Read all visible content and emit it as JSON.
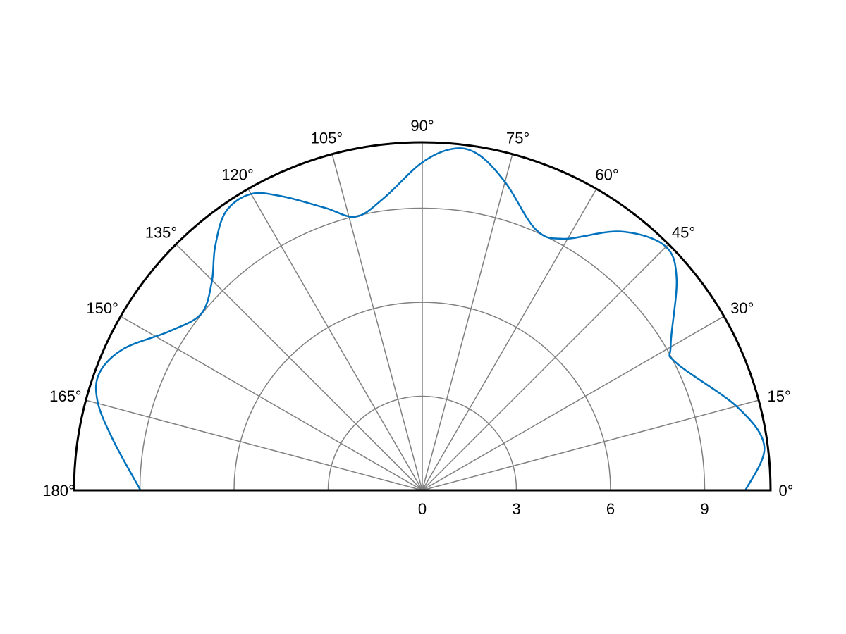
{
  "chart_data": {
    "type": "line",
    "coordinate_system": "polar",
    "angular_range_deg": [
      0,
      180
    ],
    "radial_range": [
      0,
      11.1
    ],
    "grid": true,
    "theta_ticks": [
      "0°",
      "15°",
      "30°",
      "45°",
      "60°",
      "75°",
      "90°",
      "105°",
      "120°",
      "135°",
      "150°",
      "165°",
      "180°"
    ],
    "theta_tick_values": [
      0,
      15,
      30,
      45,
      60,
      75,
      90,
      105,
      120,
      135,
      150,
      165,
      180
    ],
    "r_ticks": [
      "0",
      "3",
      "6",
      "9"
    ],
    "r_tick_values": [
      0,
      3,
      6,
      9
    ],
    "series": [
      {
        "color": "#0072BD",
        "theta_deg": [
          0,
          7.2,
          14.7,
          26.6,
          30.3,
          39.8,
          45.3,
          52.6,
          60.7,
          66.5,
          74.7,
          80.3,
          84.6,
          90,
          97.4,
          103.6,
          109,
          115.5,
          120.1,
          125.2,
          130.4,
          135.3,
          141.4,
          147.8,
          154.6,
          160,
          164.7,
          170.8,
          180
        ],
        "r": [
          10.3,
          10.99,
          10.4,
          9.06,
          9.17,
          10.55,
          10.98,
          10.39,
          9.2,
          9.07,
          10.14,
          10.84,
          10.95,
          10.46,
          9.41,
          8.98,
          9.53,
          10.39,
          10.92,
          10.87,
          10.19,
          9.44,
          9.02,
          9.52,
          10.53,
          10.95,
          10.73,
          9.98,
          8.98
        ]
      }
    ]
  }
}
